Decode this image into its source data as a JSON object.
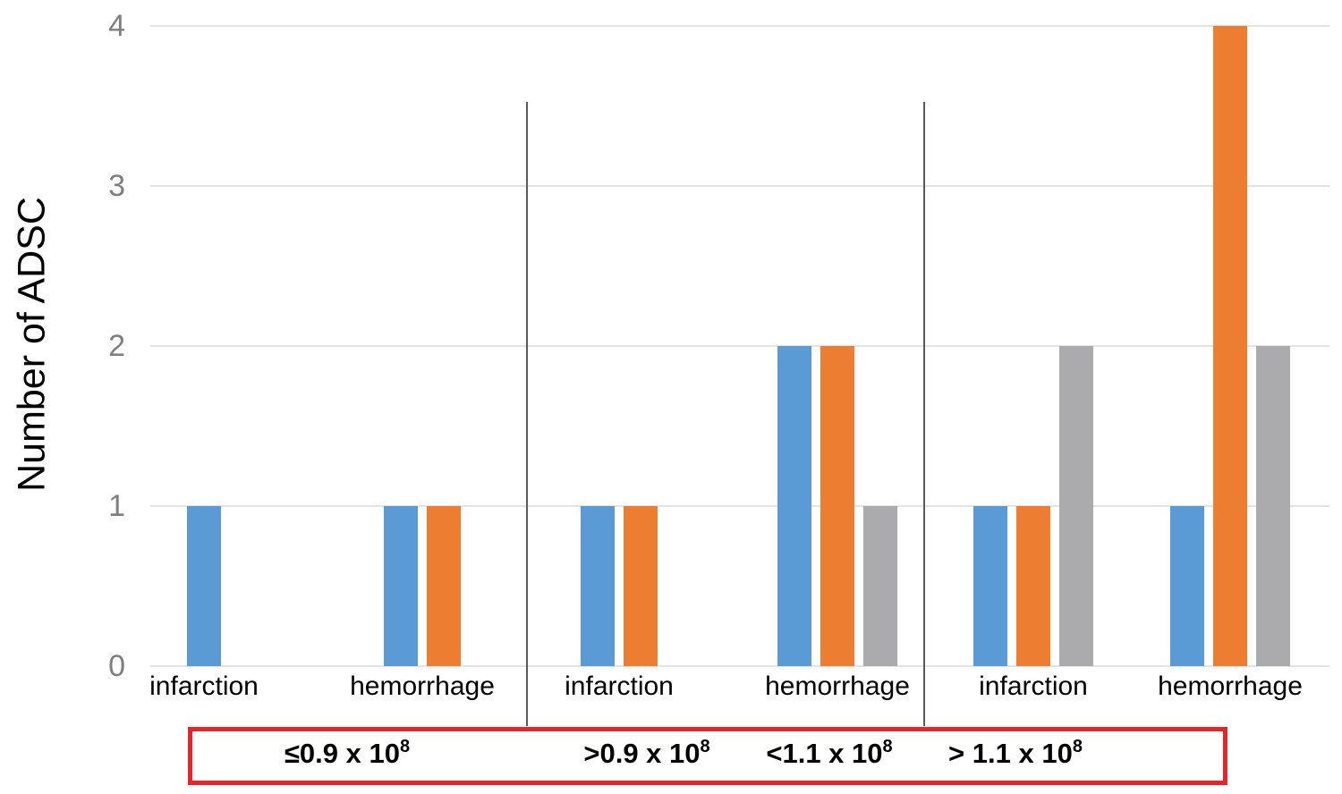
{
  "chart_data": {
    "type": "bar",
    "title": "",
    "ylabel": "Number of ADSC",
    "xlabel": "",
    "ylim": [
      0,
      4
    ],
    "yticks": [
      0,
      1,
      2,
      3,
      4
    ],
    "grid": true,
    "legend": "none",
    "series": [
      {
        "name": "series-1-blue",
        "color": "#5B9BD5"
      },
      {
        "name": "series-2-orange",
        "color": "#ED7D31"
      },
      {
        "name": "series-3-gray",
        "color": "#ABABAE"
      }
    ],
    "categories": [
      {
        "group": 0,
        "label": "infarction",
        "values": [
          1,
          0,
          0
        ]
      },
      {
        "group": 0,
        "label": "hemorrhage",
        "values": [
          1,
          1,
          0
        ]
      },
      {
        "group": 1,
        "label": "infarction",
        "values": [
          1,
          1,
          0
        ]
      },
      {
        "group": 1,
        "label": "hemorrhage",
        "values": [
          2,
          2,
          1
        ]
      },
      {
        "group": 2,
        "label": "infarction",
        "values": [
          1,
          1,
          2
        ]
      },
      {
        "group": 2,
        "label": "hemorrhage",
        "values": [
          1,
          4,
          2
        ]
      }
    ],
    "range_box_labels": [
      {
        "base": "≤0.9 x 10",
        "exp": "8"
      },
      {
        "base": ">0.9 x 10",
        "exp": "8"
      },
      {
        "base": "<1.1 x 10",
        "exp": "8"
      },
      {
        "base": "> 1.1 x 10",
        "exp": "8"
      }
    ],
    "accent_colors": {
      "gridline": "#E3E3E3",
      "tick_text": "#7F7F7F",
      "separator": "#595959",
      "range_box_border": "#E8242B"
    }
  }
}
